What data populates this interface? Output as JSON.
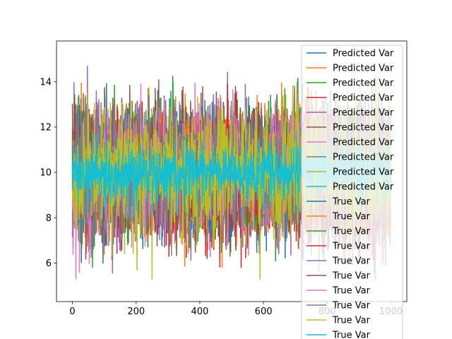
{
  "chart_data": {
    "type": "line",
    "title": "",
    "xlabel": "",
    "ylabel": "",
    "xlim": [
      -50,
      1050
    ],
    "ylim": [
      4.3,
      15.8
    ],
    "x_ticks": [
      0,
      200,
      400,
      600,
      800,
      1000
    ],
    "y_ticks": [
      6,
      8,
      10,
      12,
      14
    ],
    "x_tick_labels": [
      "0",
      "200",
      "400",
      "600",
      "800",
      "1000"
    ],
    "y_tick_labels": [
      "6",
      "8",
      "10",
      "12",
      "14"
    ],
    "n_points": 1000,
    "x_start": 0,
    "x_step": 1,
    "grid": false,
    "legend_position": "upper right",
    "series": [
      {
        "name": "Predicted Var",
        "color": "#1f77b4",
        "mean": 10,
        "std": 1.3
      },
      {
        "name": "Predicted Var",
        "color": "#ff7f0e",
        "mean": 10,
        "std": 1.3
      },
      {
        "name": "Predicted Var",
        "color": "#2ca02c",
        "mean": 10,
        "std": 1.3
      },
      {
        "name": "Predicted Var",
        "color": "#d62728",
        "mean": 10,
        "std": 1.3
      },
      {
        "name": "Predicted Var",
        "color": "#9467bd",
        "mean": 10,
        "std": 1.3
      },
      {
        "name": "Predicted Var",
        "color": "#8c564b",
        "mean": 10,
        "std": 1.3
      },
      {
        "name": "Predicted Var",
        "color": "#e377c2",
        "mean": 10,
        "std": 1.3
      },
      {
        "name": "Predicted Var",
        "color": "#7f7f7f",
        "mean": 10,
        "std": 1.3
      },
      {
        "name": "Predicted Var",
        "color": "#bcbd22",
        "mean": 10,
        "std": 1.3
      },
      {
        "name": "Predicted Var",
        "color": "#17becf",
        "mean": 10,
        "std": 0.6
      },
      {
        "name": "True Var",
        "color": "#1f77b4",
        "mean": 10,
        "std": 1.3
      },
      {
        "name": "True Var",
        "color": "#ff7f0e",
        "mean": 10,
        "std": 1.3
      },
      {
        "name": "True Var",
        "color": "#2ca02c",
        "mean": 10,
        "std": 1.3
      },
      {
        "name": "True Var",
        "color": "#d62728",
        "mean": 10,
        "std": 1.3
      },
      {
        "name": "True Var",
        "color": "#9467bd",
        "mean": 10,
        "std": 1.3
      },
      {
        "name": "True Var",
        "color": "#8c564b",
        "mean": 10,
        "std": 1.3
      },
      {
        "name": "True Var",
        "color": "#e377c2",
        "mean": 10,
        "std": 1.3
      },
      {
        "name": "True Var",
        "color": "#7f7f7f",
        "mean": 10,
        "std": 1.3
      },
      {
        "name": "True Var",
        "color": "#bcbd22",
        "mean": 10,
        "std": 1.3
      },
      {
        "name": "True Var",
        "color": "#17becf",
        "mean": 10,
        "std": 0.6
      }
    ]
  }
}
